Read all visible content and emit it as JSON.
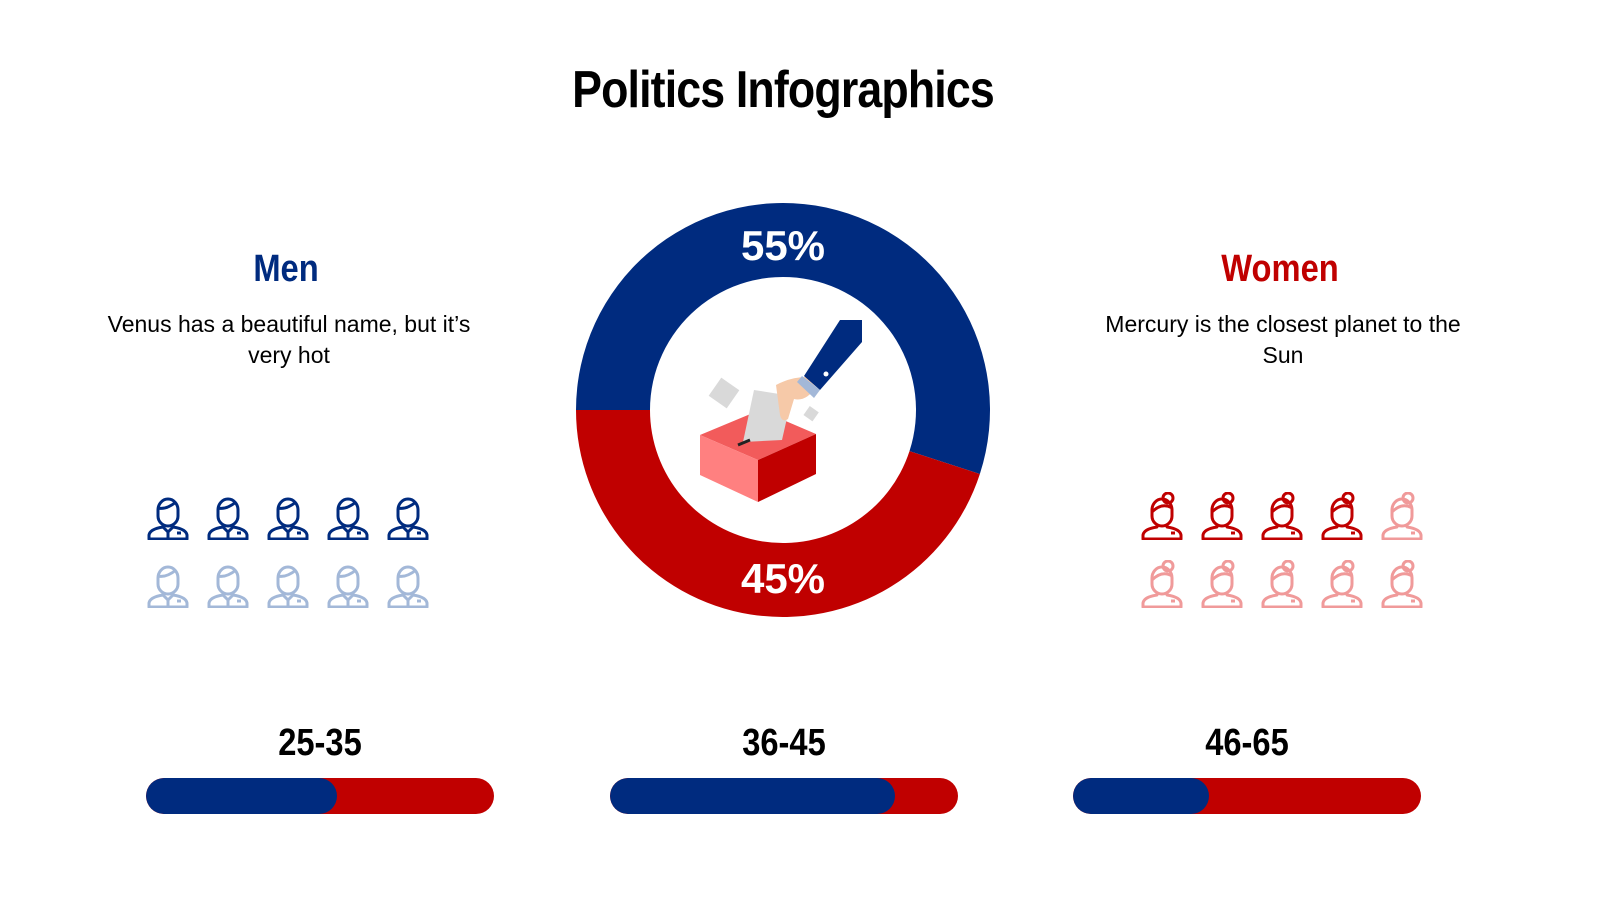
{
  "title": "Politics Infographics",
  "colors": {
    "blue": "#002b7f",
    "red": "#c00000",
    "light_blue": "#a3b8d8",
    "light_red": "#f09a9a"
  },
  "men": {
    "heading": "Men",
    "description": "Venus has a beautiful name, but it’s very hot",
    "icon": "man-icon",
    "highlighted": 5,
    "total": 10
  },
  "women": {
    "heading": "Women",
    "description": "Mercury is the closest planet to the Sun",
    "icon": "woman-icon",
    "highlighted": 4,
    "total": 10
  },
  "chart_data": [
    {
      "type": "pie",
      "variant": "donut",
      "slices": [
        {
          "label": "55%",
          "value": 55,
          "color": "#002b7f"
        },
        {
          "label": "45%",
          "value": 45,
          "color": "#c00000"
        }
      ],
      "center_icon": "ballot-box-icon"
    },
    {
      "type": "bar",
      "orientation": "horizontal",
      "stacked": true,
      "categories": [
        "25-35",
        "36-45",
        "46-65"
      ],
      "series": [
        {
          "color": "#002b7f",
          "values": [
            55,
            82,
            39
          ]
        },
        {
          "color": "#c00000",
          "values": [
            45,
            18,
            61
          ]
        }
      ]
    }
  ],
  "age_groups": [
    {
      "label": "25-35"
    },
    {
      "label": "36-45"
    },
    {
      "label": "46-65"
    }
  ]
}
